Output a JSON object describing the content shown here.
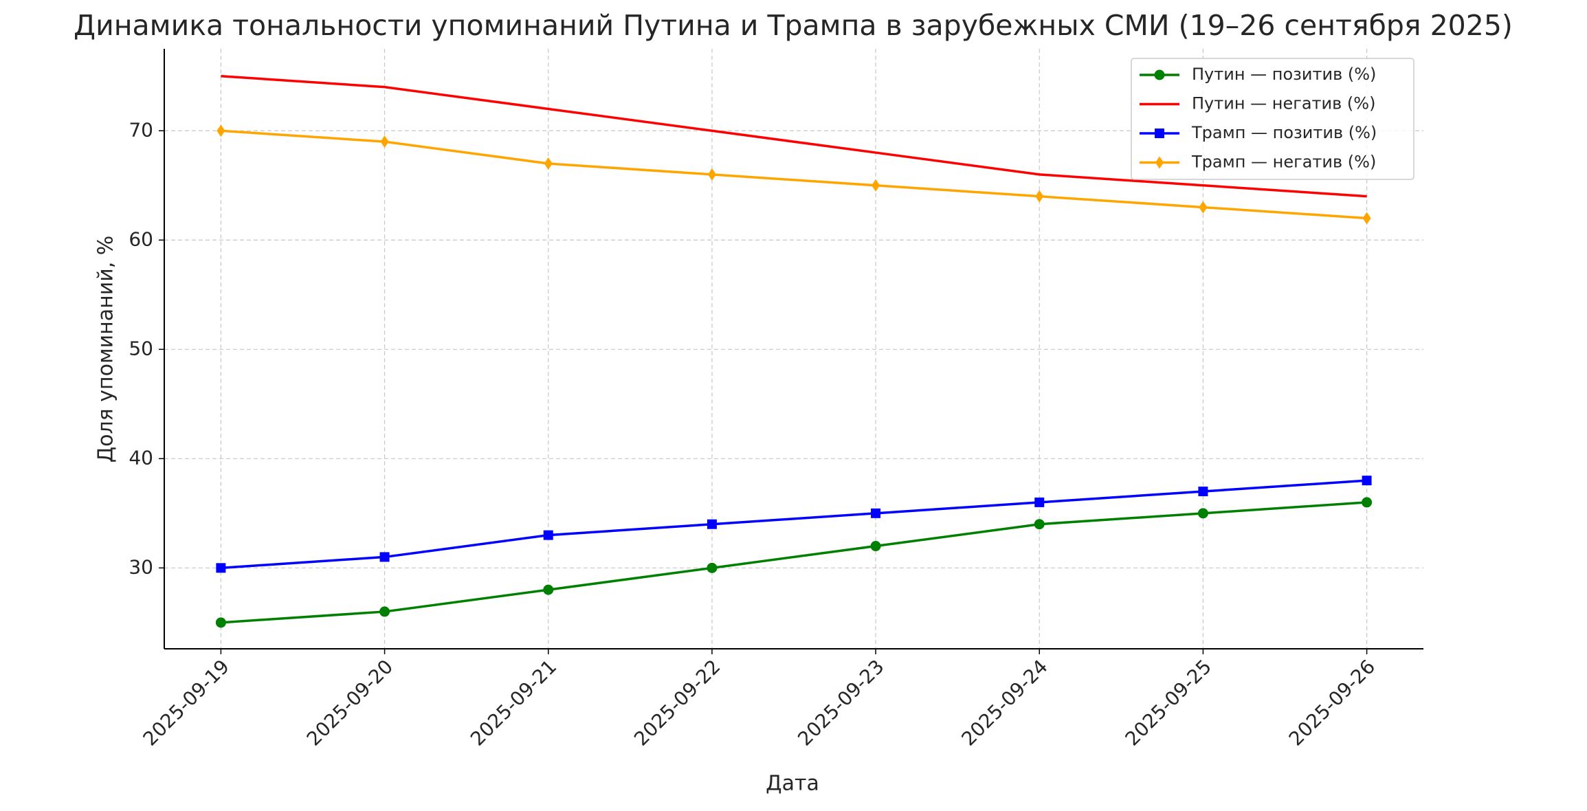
{
  "chart_data": {
    "type": "line",
    "title": "Динамика тональности упоминаний Путина и Трампа в зарубежных СМИ (19–26 сентября 2025)",
    "x_label": "Дата",
    "y_label": "Доля упоминаний, %",
    "x": [
      "2025-09-19",
      "2025-09-20",
      "2025-09-21",
      "2025-09-22",
      "2025-09-23",
      "2025-09-24",
      "2025-09-25",
      "2025-09-26"
    ],
    "series": [
      {
        "name": "Путин — позитив (%)",
        "color": "#008000",
        "marker": "circle",
        "values": [
          25,
          26,
          28,
          30,
          32,
          34,
          35,
          36
        ]
      },
      {
        "name": "Путин — негатив (%)",
        "color": "#ff0000",
        "marker": "none",
        "values": [
          75,
          74,
          72,
          70,
          68,
          66,
          65,
          64
        ]
      },
      {
        "name": "Трамп — позитив (%)",
        "color": "#0000ff",
        "marker": "square",
        "values": [
          30,
          31,
          33,
          34,
          35,
          36,
          37,
          38
        ]
      },
      {
        "name": "Трамп — негатив (%)",
        "color": "#ffa500",
        "marker": "diamond",
        "values": [
          70,
          69,
          67,
          66,
          65,
          64,
          63,
          62
        ]
      }
    ],
    "ylim": [
      22.6,
      77.5
    ],
    "yticks": [
      30,
      40,
      50,
      60,
      70
    ],
    "grid": true,
    "legend": "upper right"
  }
}
